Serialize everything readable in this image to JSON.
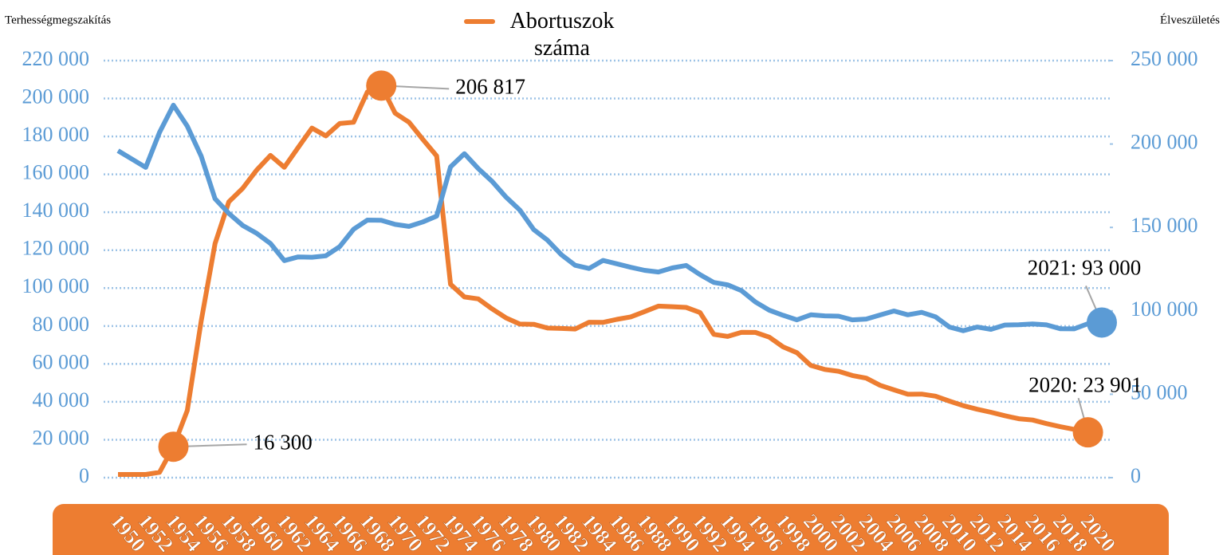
{
  "chart_data": {
    "type": "line",
    "y_label": "Terhességmegszakítás",
    "y2_label": "Élveszületés",
    "categories": [
      "1950",
      null,
      "1952",
      null,
      "1954",
      null,
      "1956",
      null,
      "1958",
      null,
      "1960",
      null,
      "1962",
      null,
      "1964",
      null,
      "1966",
      null,
      "1968",
      null,
      "1970",
      null,
      "1972",
      null,
      "1974",
      null,
      "1976",
      null,
      "1978",
      null,
      "1980",
      null,
      "1982",
      null,
      "1984",
      null,
      "1986",
      null,
      "1988",
      null,
      "1990",
      null,
      "1992",
      null,
      "1994",
      null,
      "1996",
      null,
      "1998",
      null,
      "2000",
      null,
      "2002",
      null,
      "2004",
      null,
      "2006",
      null,
      "2008",
      null,
      "2010",
      null,
      "2012",
      null,
      "2014",
      null,
      "2016",
      null,
      "2018",
      null,
      "2020",
      null
    ],
    "series": [
      {
        "name": "Abortuszok száma",
        "color": "#ed7d31",
        "axis": "y",
        "values": [
          1700,
          1700,
          1700,
          2800,
          16300,
          35400,
          82500,
          123400,
          145500,
          152600,
          162200,
          170000,
          163700,
          174100,
          184400,
          180300,
          186800,
          187500,
          203500,
          206817,
          192300,
          187500,
          178400,
          169700,
          102000,
          95300,
          94300,
          89000,
          84300,
          81000,
          80900,
          78900,
          78700,
          78400,
          82000,
          81900,
          83500,
          84800,
          87600,
          90500,
          90200,
          89800,
          87100,
          75600,
          74500,
          76700,
          76600,
          74100,
          69000,
          65900,
          59200,
          57100,
          56100,
          53900,
          52500,
          48700,
          46300,
          44000,
          44100,
          43000,
          40400,
          38000,
          36100,
          34500,
          32700,
          31100,
          30400,
          28500,
          26900,
          25500,
          23901,
          null
        ],
        "value_labels": [
          null,
          null,
          null,
          null,
          "16 300",
          null,
          null,
          null,
          null,
          null,
          null,
          null,
          null,
          null,
          null,
          null,
          null,
          null,
          null,
          "206 817",
          null,
          null,
          null,
          null,
          null,
          null,
          null,
          null,
          null,
          null,
          null,
          null,
          null,
          null,
          null,
          null,
          null,
          null,
          null,
          null,
          null,
          null,
          null,
          null,
          null,
          null,
          null,
          null,
          null,
          null,
          null,
          null,
          null,
          null,
          null,
          null,
          null,
          null,
          null,
          null,
          null,
          null,
          null,
          null,
          null,
          null,
          null,
          null,
          null,
          null,
          "2020: 23 901",
          null
        ]
      },
      {
        "color": "#5b9bd5",
        "axis": "y2",
        "values": [
          196000,
          191000,
          186000,
          207000,
          223300,
          210700,
          192800,
          167200,
          158400,
          151200,
          146500,
          140400,
          130100,
          132300,
          132100,
          133000,
          138500,
          148900,
          154400,
          154300,
          151800,
          150600,
          153300,
          156800,
          186300,
          194200,
          185300,
          177600,
          168200,
          160400,
          148700,
          142300,
          133600,
          127300,
          125400,
          130200,
          128200,
          126100,
          124300,
          123300,
          125700,
          127200,
          121700,
          117000,
          115600,
          112100,
          105300,
          100400,
          97300,
          94600,
          97600,
          97000,
          96800,
          94600,
          95100,
          97500,
          99900,
          97600,
          99100,
          96400,
          90300,
          88100,
          90300,
          88900,
          91500,
          91700,
          92100,
          91600,
          89300,
          89200,
          92300,
          93000
        ],
        "value_labels": [
          null,
          null,
          null,
          null,
          null,
          null,
          null,
          null,
          null,
          null,
          null,
          null,
          null,
          null,
          null,
          null,
          null,
          null,
          null,
          null,
          null,
          null,
          null,
          null,
          null,
          null,
          null,
          null,
          null,
          null,
          null,
          null,
          null,
          null,
          null,
          null,
          null,
          null,
          null,
          null,
          null,
          null,
          null,
          null,
          null,
          null,
          null,
          null,
          null,
          null,
          null,
          null,
          null,
          null,
          null,
          null,
          null,
          null,
          null,
          null,
          null,
          null,
          null,
          null,
          null,
          null,
          null,
          null,
          null,
          null,
          null,
          "2021: 93 000"
        ]
      }
    ],
    "ylim": [
      0,
      220000
    ],
    "yticks": [
      0,
      {
        "value": 20000,
        "label": "20 000"
      },
      {
        "value": 40000,
        "label": "40 000"
      },
      {
        "value": 60000,
        "label": "60 000"
      },
      {
        "value": 80000,
        "label": "80 000"
      },
      {
        "value": 100000,
        "label": "100 000"
      },
      {
        "value": 120000,
        "label": "120 000"
      },
      {
        "value": 140000,
        "label": "140 000"
      },
      {
        "value": 160000,
        "label": "160 000"
      },
      {
        "value": 180000,
        "label": "180 000"
      },
      {
        "value": 200000,
        "label": "200 000"
      },
      {
        "value": 220000,
        "label": "220 000"
      }
    ],
    "y2lim": [
      0,
      250000
    ],
    "y2ticks": [
      0,
      {
        "value": 50000,
        "label": "50 000"
      },
      {
        "value": 100000,
        "label": "100 000"
      },
      {
        "value": 150000,
        "label": "150 000"
      },
      {
        "value": 200000,
        "label": "200 000"
      },
      {
        "value": 250000,
        "label": "250 000"
      }
    ],
    "grid": true,
    "legend": "top"
  }
}
